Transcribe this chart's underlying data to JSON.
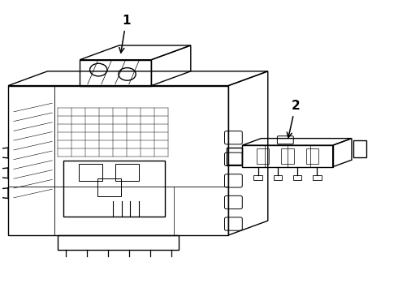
{
  "bg_color": "#ffffff",
  "line_color": "#000000",
  "fig_width": 4.9,
  "fig_height": 3.6,
  "dpi": 100,
  "label1": "1",
  "label2": "2"
}
